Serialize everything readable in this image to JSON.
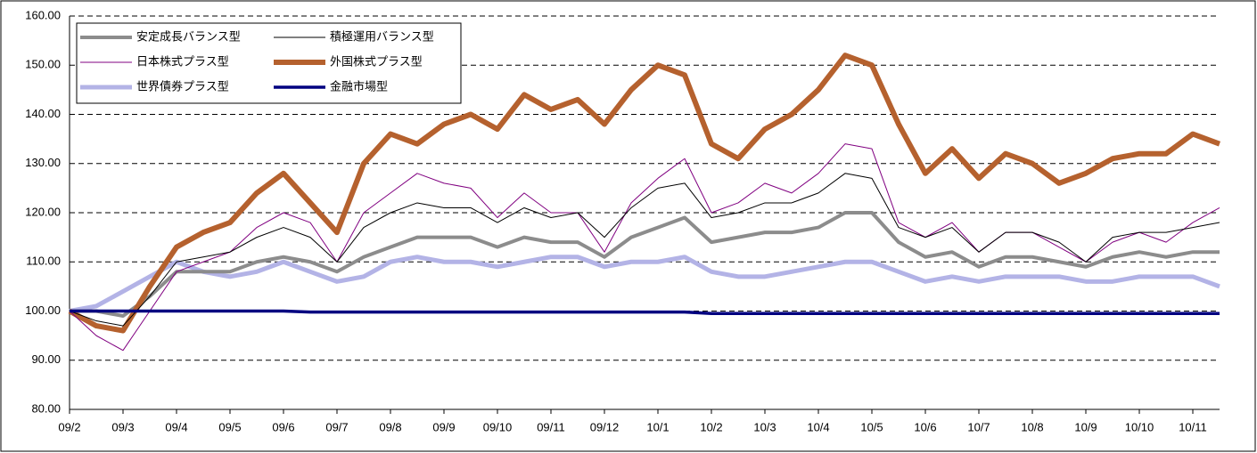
{
  "chart_data": {
    "type": "line",
    "categories": [
      "09/2",
      null,
      "09/3",
      null,
      "09/4",
      null,
      "09/5",
      null,
      "09/6",
      null,
      "09/7",
      null,
      "09/8",
      null,
      "09/9",
      null,
      "09/10",
      null,
      "09/11",
      null,
      "09/12",
      null,
      "10/1",
      null,
      "10/2",
      null,
      "10/3",
      null,
      "10/4",
      null,
      "10/5",
      null,
      "10/6",
      null,
      "10/7",
      null,
      "10/8",
      null,
      "10/9",
      null,
      "10/10",
      null,
      "10/11",
      null
    ],
    "ylim": [
      80,
      160
    ],
    "yticks": [
      {
        "value": 80,
        "label": "80.00"
      },
      {
        "value": 90,
        "label": "90.00"
      },
      {
        "value": 100,
        "label": "100.00"
      },
      {
        "value": 110,
        "label": "110.00"
      },
      {
        "value": 120,
        "label": "120.00"
      },
      {
        "value": 130,
        "label": "130.00"
      },
      {
        "value": 140,
        "label": "140.00"
      },
      {
        "value": 150,
        "label": "150.00"
      },
      {
        "value": 160,
        "label": "160.00"
      }
    ],
    "grid": true,
    "legend": "upper left",
    "series": [
      {
        "name": "安定成長バランス型",
        "color": "#8c8c8c",
        "values": [
          100,
          100,
          99,
          103,
          108,
          108,
          108,
          110,
          111,
          110,
          108,
          111,
          113,
          115,
          115,
          115,
          113,
          115,
          114,
          114,
          111,
          115,
          117,
          119,
          114,
          115,
          116,
          116,
          117,
          120,
          120,
          114,
          111,
          112,
          109,
          111,
          111,
          110,
          109,
          111,
          112,
          111,
          112,
          112
        ]
      },
      {
        "name": "積極運用バランス型",
        "color": "#000000",
        "values": [
          100,
          98,
          97,
          103,
          110,
          111,
          112,
          115,
          117,
          115,
          110,
          117,
          120,
          122,
          121,
          121,
          118,
          121,
          119,
          120,
          115,
          121,
          125,
          126,
          119,
          120,
          122,
          122,
          124,
          128,
          127,
          117,
          115,
          117,
          112,
          116,
          116,
          114,
          110,
          115,
          116,
          116,
          117,
          118
        ]
      },
      {
        "name": "日本株式プラス型",
        "color": "#800080",
        "values": [
          100,
          95,
          92,
          100,
          108,
          110,
          112,
          117,
          120,
          118,
          110,
          120,
          124,
          128,
          126,
          125,
          119,
          124,
          120,
          120,
          112,
          122,
          127,
          131,
          120,
          122,
          126,
          124,
          128,
          134,
          133,
          118,
          115,
          118,
          112,
          116,
          116,
          113,
          110,
          114,
          116,
          114,
          118,
          121
        ]
      },
      {
        "name": "外国株式プラス型",
        "color": "#b5612e",
        "values": [
          100,
          97,
          96,
          105,
          113,
          116,
          118,
          124,
          128,
          122,
          116,
          130,
          136,
          134,
          138,
          140,
          137,
          144,
          141,
          143,
          138,
          145,
          150,
          148,
          134,
          131,
          137,
          140,
          145,
          152,
          150,
          138,
          128,
          133,
          127,
          132,
          130,
          126,
          128,
          131,
          132,
          132,
          136,
          134
        ]
      },
      {
        "name": "世界債券プラス型",
        "color": "#b3b3e6",
        "values": [
          100,
          101,
          104,
          107,
          110,
          108,
          107,
          108,
          110,
          108,
          106,
          107,
          110,
          111,
          110,
          110,
          109,
          110,
          111,
          111,
          109,
          110,
          110,
          111,
          108,
          107,
          107,
          108,
          109,
          110,
          110,
          108,
          106,
          107,
          106,
          107,
          107,
          107,
          106,
          106,
          107,
          107,
          107,
          105
        ]
      },
      {
        "name": "金融市場型",
        "color": "#000080",
        "values": [
          100,
          100,
          100,
          100,
          100,
          100,
          100,
          100,
          100,
          99.8,
          99.8,
          99.8,
          99.8,
          99.8,
          99.8,
          99.8,
          99.8,
          99.8,
          99.8,
          99.8,
          99.8,
          99.8,
          99.8,
          99.8,
          99.5,
          99.5,
          99.5,
          99.5,
          99.5,
          99.5,
          99.5,
          99.5,
          99.5,
          99.5,
          99.5,
          99.5,
          99.5,
          99.5,
          99.5,
          99.5,
          99.5,
          99.5,
          99.5,
          99.5
        ]
      }
    ]
  }
}
